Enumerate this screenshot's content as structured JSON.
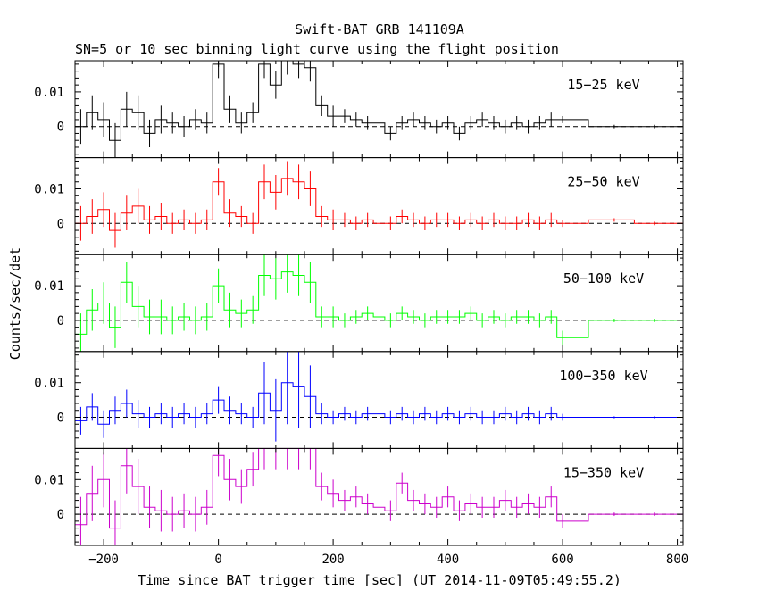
{
  "chart_data": {
    "type": "line",
    "title": "Swift-BAT GRB 141109A",
    "subtitle": "SN=5 or 10 sec binning light curve using the flight position",
    "xlabel": "Time since BAT trigger time [sec] (UT 2014-11-09T05:49:55.2)",
    "ylabel": "Counts/sec/det",
    "xlim": [
      -250,
      810
    ],
    "xticks": [
      -200,
      0,
      200,
      400,
      600,
      800
    ],
    "xtick_labels": [
      "−200",
      "0",
      "200",
      "400",
      "600",
      "800"
    ],
    "ylim": [
      -0.009,
      0.019
    ],
    "yticks": [
      0,
      0.01
    ],
    "ytick_labels": [
      "0",
      "0.01"
    ],
    "grid": false,
    "zero_line": "dashed",
    "panels": [
      {
        "name": "15−25 keV",
        "color": "#000000",
        "x": [
          -240,
          -220,
          -200,
          -180,
          -160,
          -140,
          -120,
          -100,
          -80,
          -60,
          -40,
          -20,
          0,
          20,
          40,
          60,
          80,
          100,
          120,
          140,
          160,
          180,
          200,
          220,
          240,
          260,
          280,
          300,
          320,
          340,
          360,
          380,
          400,
          420,
          440,
          460,
          480,
          500,
          520,
          540,
          560,
          580,
          600,
          690,
          760
        ],
        "values": [
          0.0,
          0.004,
          0.002,
          -0.004,
          0.005,
          0.004,
          -0.002,
          0.002,
          0.001,
          0.0,
          0.002,
          0.001,
          0.018,
          0.005,
          0.001,
          0.004,
          0.018,
          0.012,
          0.019,
          0.018,
          0.017,
          0.006,
          0.003,
          0.003,
          0.002,
          0.001,
          0.001,
          -0.002,
          0.001,
          0.002,
          0.001,
          0.0,
          0.001,
          -0.002,
          0.001,
          0.002,
          0.001,
          0.0,
          0.001,
          0.0,
          0.001,
          0.002,
          0.002,
          0.0,
          0.0
        ],
        "errors": [
          0.005,
          0.005,
          0.005,
          0.005,
          0.005,
          0.005,
          0.004,
          0.004,
          0.003,
          0.003,
          0.003,
          0.003,
          0.004,
          0.004,
          0.003,
          0.003,
          0.004,
          0.004,
          0.004,
          0.004,
          0.004,
          0.003,
          0.003,
          0.002,
          0.002,
          0.002,
          0.002,
          0.002,
          0.002,
          0.002,
          0.002,
          0.002,
          0.002,
          0.002,
          0.002,
          0.002,
          0.002,
          0.002,
          0.002,
          0.002,
          0.002,
          0.002,
          0.001,
          0.0005,
          0.0005
        ]
      },
      {
        "name": "25−50 keV",
        "color": "#ff0000",
        "x": [
          -240,
          -220,
          -200,
          -180,
          -160,
          -140,
          -120,
          -100,
          -80,
          -60,
          -40,
          -20,
          0,
          20,
          40,
          60,
          80,
          100,
          120,
          140,
          160,
          180,
          200,
          220,
          240,
          260,
          280,
          300,
          320,
          340,
          360,
          380,
          400,
          420,
          440,
          460,
          480,
          500,
          520,
          540,
          560,
          580,
          600,
          690,
          760
        ],
        "values": [
          0.0,
          0.002,
          0.004,
          -0.002,
          0.003,
          0.005,
          0.001,
          0.002,
          0.0,
          0.001,
          0.0,
          0.001,
          0.012,
          0.003,
          0.002,
          0.0,
          0.012,
          0.009,
          0.013,
          0.012,
          0.01,
          0.002,
          0.001,
          0.001,
          0.0,
          0.001,
          0.0,
          0.0,
          0.002,
          0.001,
          0.0,
          0.001,
          0.001,
          0.0,
          0.001,
          0.0,
          0.001,
          0.0,
          0.0,
          0.001,
          0.0,
          0.001,
          0.0,
          0.001,
          0.0
        ],
        "errors": [
          0.005,
          0.005,
          0.005,
          0.005,
          0.005,
          0.005,
          0.004,
          0.004,
          0.003,
          0.003,
          0.003,
          0.003,
          0.004,
          0.004,
          0.003,
          0.003,
          0.005,
          0.005,
          0.005,
          0.005,
          0.005,
          0.003,
          0.003,
          0.002,
          0.002,
          0.002,
          0.002,
          0.002,
          0.002,
          0.002,
          0.002,
          0.002,
          0.002,
          0.002,
          0.002,
          0.002,
          0.002,
          0.002,
          0.002,
          0.002,
          0.002,
          0.002,
          0.001,
          0.0005,
          0.0005
        ]
      },
      {
        "name": "50−100 keV",
        "color": "#00ff00",
        "x": [
          -240,
          -220,
          -200,
          -180,
          -160,
          -140,
          -120,
          -100,
          -80,
          -60,
          -40,
          -20,
          0,
          20,
          40,
          60,
          80,
          100,
          120,
          140,
          160,
          180,
          200,
          220,
          240,
          260,
          280,
          300,
          320,
          340,
          360,
          380,
          400,
          420,
          440,
          460,
          480,
          500,
          520,
          540,
          560,
          580,
          600,
          690,
          760
        ],
        "values": [
          -0.004,
          0.003,
          0.005,
          -0.002,
          0.011,
          0.004,
          0.001,
          0.001,
          0.0,
          0.001,
          0.0,
          0.001,
          0.01,
          0.003,
          0.002,
          0.003,
          0.013,
          0.012,
          0.014,
          0.013,
          0.011,
          0.001,
          0.001,
          0.0,
          0.001,
          0.002,
          0.001,
          0.0,
          0.002,
          0.001,
          0.0,
          0.001,
          0.001,
          0.001,
          0.002,
          0.0,
          0.001,
          0.0,
          0.001,
          0.001,
          0.0,
          0.001,
          -0.005,
          0.0,
          0.0
        ],
        "errors": [
          0.006,
          0.006,
          0.006,
          0.006,
          0.006,
          0.006,
          0.005,
          0.005,
          0.004,
          0.004,
          0.004,
          0.004,
          0.005,
          0.005,
          0.004,
          0.004,
          0.006,
          0.006,
          0.006,
          0.006,
          0.006,
          0.003,
          0.003,
          0.002,
          0.002,
          0.002,
          0.002,
          0.002,
          0.002,
          0.002,
          0.002,
          0.002,
          0.002,
          0.002,
          0.002,
          0.002,
          0.002,
          0.002,
          0.002,
          0.002,
          0.002,
          0.002,
          0.002,
          0.0005,
          0.0005
        ]
      },
      {
        "name": "100−350 keV",
        "color": "#0000ff",
        "x": [
          -240,
          -220,
          -200,
          -180,
          -160,
          -140,
          -120,
          -100,
          -80,
          -60,
          -40,
          -20,
          0,
          20,
          40,
          60,
          80,
          100,
          120,
          140,
          160,
          180,
          200,
          220,
          240,
          260,
          280,
          300,
          320,
          340,
          360,
          380,
          400,
          420,
          440,
          460,
          480,
          500,
          520,
          540,
          560,
          580,
          600,
          690,
          760
        ],
        "values": [
          -0.001,
          0.003,
          -0.002,
          0.002,
          0.004,
          0.001,
          0.0,
          0.001,
          0.0,
          0.001,
          0.0,
          0.001,
          0.005,
          0.002,
          0.001,
          0.0,
          0.007,
          0.002,
          0.01,
          0.009,
          0.006,
          0.001,
          0.0,
          0.001,
          0.0,
          0.001,
          0.001,
          0.0,
          0.001,
          0.0,
          0.001,
          0.0,
          0.001,
          0.0,
          0.001,
          0.0,
          0.0,
          0.001,
          0.0,
          0.001,
          0.0,
          0.001,
          0.0,
          0.0,
          0.0
        ],
        "errors": [
          0.004,
          0.004,
          0.004,
          0.004,
          0.004,
          0.004,
          0.003,
          0.003,
          0.003,
          0.003,
          0.003,
          0.003,
          0.004,
          0.004,
          0.003,
          0.003,
          0.009,
          0.009,
          0.012,
          0.012,
          0.009,
          0.003,
          0.002,
          0.002,
          0.002,
          0.002,
          0.002,
          0.002,
          0.002,
          0.002,
          0.002,
          0.002,
          0.002,
          0.002,
          0.002,
          0.002,
          0.002,
          0.002,
          0.002,
          0.002,
          0.002,
          0.002,
          0.001,
          0.0003,
          0.0003
        ]
      },
      {
        "name": "15−350 keV",
        "color": "#cc00cc",
        "x": [
          -240,
          -220,
          -200,
          -180,
          -160,
          -140,
          -120,
          -100,
          -80,
          -60,
          -40,
          -20,
          0,
          20,
          40,
          60,
          80,
          100,
          120,
          140,
          160,
          180,
          200,
          220,
          240,
          260,
          280,
          300,
          320,
          340,
          360,
          380,
          400,
          420,
          440,
          460,
          480,
          500,
          520,
          540,
          560,
          580,
          600,
          690,
          760
        ],
        "values": [
          -0.003,
          0.006,
          0.01,
          -0.004,
          0.014,
          0.008,
          0.002,
          0.001,
          0.0,
          0.001,
          0.0,
          0.002,
          0.017,
          0.01,
          0.008,
          0.013,
          0.019,
          0.019,
          0.019,
          0.019,
          0.019,
          0.008,
          0.006,
          0.004,
          0.005,
          0.003,
          0.002,
          0.001,
          0.009,
          0.004,
          0.003,
          0.002,
          0.005,
          0.001,
          0.003,
          0.002,
          0.002,
          0.004,
          0.002,
          0.003,
          0.002,
          0.005,
          -0.002,
          0.0,
          0.0
        ],
        "errors": [
          0.008,
          0.008,
          0.008,
          0.008,
          0.008,
          0.008,
          0.006,
          0.006,
          0.005,
          0.005,
          0.005,
          0.005,
          0.006,
          0.006,
          0.005,
          0.005,
          0.006,
          0.006,
          0.006,
          0.006,
          0.006,
          0.004,
          0.004,
          0.003,
          0.003,
          0.003,
          0.003,
          0.003,
          0.003,
          0.003,
          0.003,
          0.003,
          0.003,
          0.003,
          0.003,
          0.003,
          0.003,
          0.003,
          0.003,
          0.003,
          0.003,
          0.003,
          0.002,
          0.0005,
          0.0005
        ]
      }
    ]
  }
}
